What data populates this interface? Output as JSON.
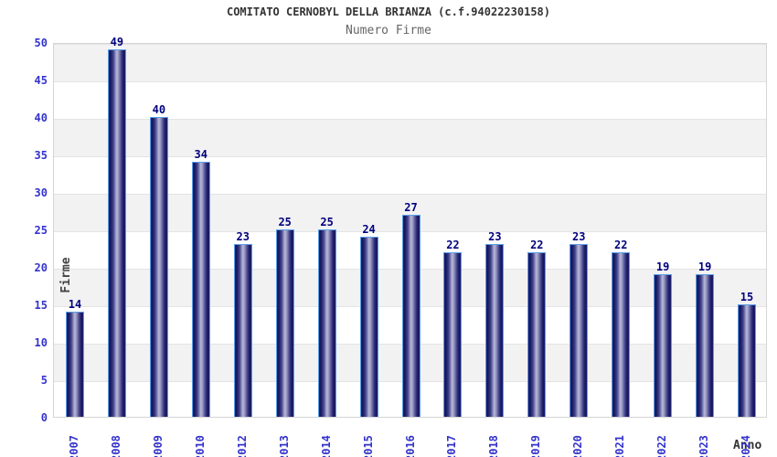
{
  "title": "COMITATO CERNOBYL DELLA BRIANZA (c.f.94022230158)",
  "subtitle": "Numero Firme",
  "chart_data": {
    "type": "bar",
    "title": "COMITATO CERNOBYL DELLA BRIANZA (c.f.94022230158)",
    "subtitle": "Numero Firme",
    "xlabel": "Anno",
    "ylabel": "Firme",
    "categories": [
      "2007",
      "2008",
      "2009",
      "2010",
      "2012",
      "2013",
      "2014",
      "2015",
      "2016",
      "2017",
      "2018",
      "2019",
      "2020",
      "2021",
      "2022",
      "2023",
      "2024"
    ],
    "values": [
      14,
      49,
      40,
      34,
      23,
      25,
      25,
      24,
      27,
      22,
      23,
      22,
      23,
      22,
      19,
      19,
      15
    ],
    "ylim": [
      0,
      50
    ],
    "ytick_step": 5,
    "grid": "horizontal",
    "legend": "none",
    "colors": {
      "bar_edge": "#16165c",
      "bar_highlight": "#b8b8d8",
      "bar_border": "#5b9fe8",
      "tick_label": "#3333cc",
      "value_label": "#00007e",
      "title": "#333333",
      "subtitle": "#666666",
      "band": "#f2f2f2",
      "gridline": "#e4e4e4",
      "plot_border": "#d4d4d4"
    }
  }
}
